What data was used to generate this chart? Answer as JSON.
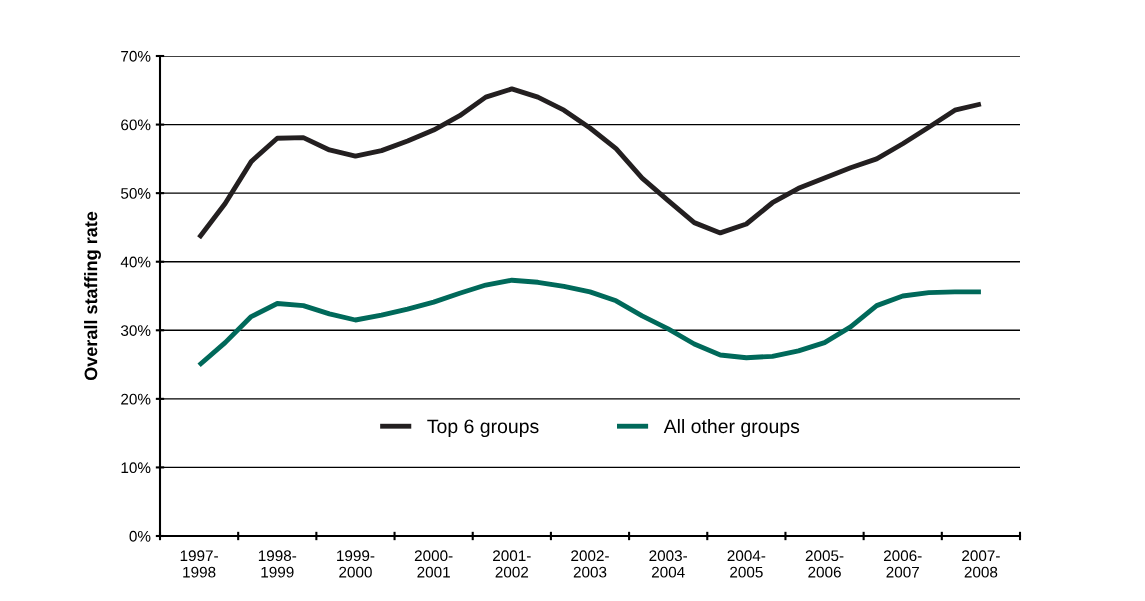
{
  "chart_data": {
    "type": "line",
    "ylabel": "Overall staffing rate",
    "categories": [
      null,
      "1997-\n1998",
      null,
      null,
      "1998-\n1999",
      null,
      null,
      "1999-\n2000",
      null,
      null,
      "2000-\n2001",
      null,
      null,
      "2001-\n2002",
      null,
      null,
      "2002-\n2003",
      null,
      null,
      "2003-\n2004",
      null,
      null,
      "2004-\n2005",
      null,
      null,
      "2005-\n2006",
      null,
      null,
      "2006-\n2007",
      null,
      null,
      "2007-\n2008",
      null
    ],
    "ylim": [
      0,
      70
    ],
    "yticks": [
      {
        "value": 0,
        "label": "0%"
      },
      {
        "value": 10,
        "label": "10%"
      },
      {
        "value": 20,
        "label": "20%"
      },
      {
        "value": 30,
        "label": "30%"
      },
      {
        "value": 40,
        "label": "40%"
      },
      {
        "value": 50,
        "label": "50%"
      },
      {
        "value": 60,
        "label": "60%"
      },
      {
        "value": 70,
        "label": "70%"
      }
    ],
    "grid": "y",
    "legend": "bottom",
    "marker": "none",
    "line_style": "solid",
    "series": [
      {
        "name": "Top 6 groups",
        "color": "#231f20",
        "values": [
          null,
          43.5,
          48.5,
          54.6,
          58.0,
          58.1,
          56.3,
          55.4,
          56.2,
          57.6,
          59.2,
          61.3,
          64.0,
          65.2,
          64.0,
          62.1,
          59.5,
          56.5,
          52.2,
          48.9,
          45.7,
          44.2,
          45.5,
          48.6,
          50.7,
          52.2,
          53.7,
          55.0,
          57.2,
          59.6,
          62.1,
          63.0,
          null
        ]
      },
      {
        "name": "All other groups",
        "color": "#00695a",
        "values": [
          null,
          24.9,
          28.2,
          32.0,
          33.9,
          33.6,
          32.4,
          31.5,
          32.2,
          33.1,
          34.1,
          35.4,
          36.6,
          37.3,
          37.0,
          36.4,
          35.6,
          34.3,
          32.1,
          30.2,
          28.0,
          26.4,
          26.0,
          26.2,
          27.0,
          28.2,
          30.5,
          33.6,
          35.0,
          35.5,
          35.6,
          35.6,
          null
        ]
      }
    ]
  }
}
